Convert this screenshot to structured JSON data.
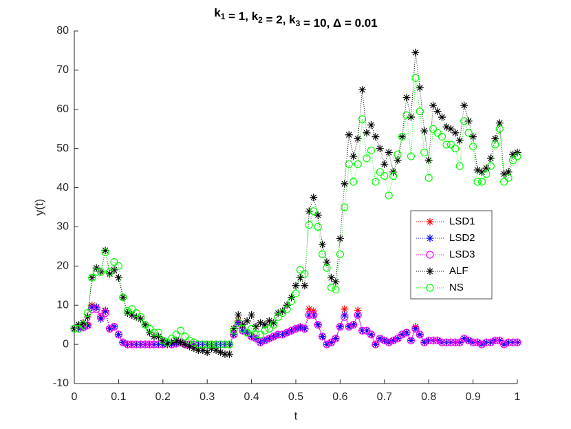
{
  "chart_data": {
    "type": "line",
    "title": "k1 = 1, k2 = 2, k3 = 10, Δ = 0.01",
    "xlabel": "t",
    "ylabel": "y(t)",
    "x": [
      0,
      0.01,
      0.02,
      0.03,
      0.04,
      0.05,
      0.06,
      0.07,
      0.08,
      0.09,
      0.1,
      0.11,
      0.12,
      0.13,
      0.14,
      0.15,
      0.16,
      0.17,
      0.18,
      0.19,
      0.2,
      0.21,
      0.22,
      0.23,
      0.24,
      0.25,
      0.26,
      0.27,
      0.28,
      0.29,
      0.3,
      0.31,
      0.32,
      0.33,
      0.34,
      0.35,
      0.36,
      0.37,
      0.38,
      0.39,
      0.4,
      0.41,
      0.42,
      0.43,
      0.44,
      0.45,
      0.46,
      0.47,
      0.48,
      0.49,
      0.5,
      0.51,
      0.52,
      0.53,
      0.54,
      0.55,
      0.56,
      0.57,
      0.58,
      0.59,
      0.6,
      0.61,
      0.62,
      0.63,
      0.64,
      0.65,
      0.66,
      0.67,
      0.68,
      0.69,
      0.7,
      0.71,
      0.72,
      0.73,
      0.74,
      0.75,
      0.76,
      0.77,
      0.78,
      0.79,
      0.8,
      0.81,
      0.82,
      0.83,
      0.84,
      0.85,
      0.86,
      0.87,
      0.88,
      0.89,
      0.9,
      0.91,
      0.92,
      0.93,
      0.94,
      0.95,
      0.96,
      0.97,
      0.98,
      0.99,
      1
    ],
    "series": [
      {
        "name": "LSD1",
        "color": "#ff0000",
        "marker": "asterisk",
        "values": [
          4,
          4,
          4.5,
          5,
          10,
          9.5,
          7,
          8.7,
          4,
          4.5,
          2.5,
          0.5,
          0,
          0,
          0,
          0,
          0,
          0,
          0,
          0,
          0,
          0.5,
          0,
          0.2,
          0.5,
          0,
          0,
          0,
          0,
          0,
          0,
          0,
          0,
          0,
          0,
          0,
          2.5,
          6,
          3.5,
          3,
          2,
          1.5,
          0.5,
          1,
          1.5,
          2,
          2.5,
          2.5,
          3,
          3.5,
          4,
          4.5,
          4,
          9,
          8.5,
          5,
          2,
          0,
          0.5,
          1.5,
          4.5,
          9,
          4.5,
          5,
          8.7,
          3.5,
          3.5,
          2.5,
          0,
          1.5,
          1,
          0.5,
          1,
          1.5,
          2.5,
          3,
          1,
          4.5,
          2.5,
          0.5,
          1,
          1,
          1,
          0.5,
          0.5,
          0.5,
          0.5,
          0.5,
          1.5,
          1,
          0.5,
          0.5,
          0,
          0.5,
          0.5,
          1,
          1,
          0,
          0.5,
          0.5,
          0.5
        ]
      },
      {
        "name": "LSD2",
        "color": "#0000ff",
        "marker": "asterisk",
        "values": [
          4,
          4,
          4.3,
          4.8,
          9.5,
          9.5,
          6.5,
          8.5,
          4,
          4.5,
          2.5,
          0.5,
          0,
          0,
          0,
          0,
          0,
          0,
          0,
          0,
          0,
          0.5,
          0,
          0.2,
          0.5,
          0,
          0,
          0,
          0,
          0,
          0,
          0,
          0,
          0,
          0,
          0,
          2.5,
          5.5,
          3.5,
          3,
          2,
          1.5,
          0.5,
          1,
          1.5,
          2,
          2.5,
          2.5,
          3,
          3.5,
          4,
          4.3,
          4,
          7.5,
          7.5,
          5,
          2,
          0,
          0.5,
          1.5,
          4.5,
          7.5,
          4.5,
          5,
          7.5,
          3.5,
          3.5,
          2.5,
          0,
          1.5,
          1,
          0.5,
          1,
          1.5,
          2.5,
          3,
          1,
          4,
          2.5,
          0.5,
          1,
          1,
          1,
          0.5,
          0.5,
          0.5,
          0.5,
          0.5,
          1.5,
          1,
          0.5,
          0.5,
          0,
          0.5,
          0.5,
          1,
          1,
          0,
          0.5,
          0.5,
          0.5
        ]
      },
      {
        "name": "LSD3",
        "color": "#ff00ff",
        "marker": "circle",
        "values": [
          4,
          4,
          4.3,
          4.8,
          9,
          9,
          7,
          8,
          4,
          4.5,
          2.5,
          0.5,
          0,
          0,
          0,
          0,
          0,
          0,
          0,
          0,
          0,
          0.5,
          0,
          0.2,
          0.5,
          0,
          0,
          0,
          0,
          0,
          0,
          0,
          0,
          0,
          0,
          0,
          2.5,
          5,
          3.5,
          3,
          2,
          1.5,
          0.5,
          1,
          1.5,
          2,
          2.5,
          2.5,
          3,
          3.5,
          4,
          4.3,
          4,
          7.5,
          7.5,
          5,
          2,
          0,
          0.5,
          1.5,
          4.5,
          7,
          4.5,
          5,
          7.5,
          3.5,
          3.5,
          2.5,
          0,
          1.5,
          1,
          0.5,
          1,
          1.5,
          2.5,
          3,
          1,
          4,
          2.5,
          0.5,
          1,
          1,
          1,
          0.5,
          0.5,
          0.5,
          0.5,
          0.5,
          1.5,
          1,
          0.5,
          0.5,
          0,
          0.5,
          0.5,
          1,
          1,
          0,
          0.5,
          0.5,
          0.5
        ]
      },
      {
        "name": "ALF",
        "color": "#000000",
        "marker": "asterisk",
        "values": [
          4,
          5,
          5.5,
          7,
          17,
          19.5,
          18.5,
          24,
          18,
          19,
          17,
          12,
          8,
          7.5,
          7,
          6.5,
          5,
          3,
          2,
          2,
          1,
          0,
          0.5,
          1,
          0.5,
          0,
          -0.5,
          -1,
          -1.5,
          -1.5,
          -2,
          -1,
          -1.5,
          -2,
          -2.5,
          -2.5,
          4,
          7.5,
          5,
          6,
          7.5,
          4.5,
          5.5,
          5,
          6,
          5.5,
          8,
          8.5,
          10,
          12,
          15,
          17,
          15,
          34,
          37.5,
          33,
          25.5,
          21,
          17,
          16,
          27,
          41,
          53.5,
          48,
          52.5,
          65,
          54,
          56,
          53,
          50,
          46,
          49,
          44,
          47,
          53,
          63,
          58,
          74.5,
          65.5,
          54.5,
          47,
          61,
          59.5,
          58,
          55.5,
          55,
          54,
          52,
          61,
          57,
          53,
          44.5,
          44,
          45,
          47.5,
          52.5,
          56.5,
          43.5,
          44,
          48.5,
          49
        ]
      },
      {
        "name": "NS",
        "color": "#00ff00",
        "marker": "circle",
        "values": [
          4,
          4,
          5,
          8,
          17,
          18.5,
          18.5,
          23.5,
          18.5,
          21,
          20,
          12,
          8.5,
          9,
          8,
          7,
          5,
          4,
          3,
          3,
          1,
          0.5,
          1.5,
          2.5,
          3.5,
          2,
          1,
          0.5,
          0,
          0,
          0,
          0,
          0,
          0,
          0,
          0,
          3.5,
          5.5,
          4,
          3,
          4,
          2.5,
          2.5,
          3.5,
          4,
          5,
          7,
          8,
          9,
          11,
          13,
          19,
          18,
          30.5,
          34,
          30,
          23,
          19.5,
          14.5,
          14,
          23,
          35,
          46,
          41.5,
          46,
          57.5,
          47.5,
          49.5,
          41.5,
          44,
          43,
          38,
          43,
          48.5,
          53,
          58.5,
          48,
          68,
          59.5,
          49,
          42.5,
          55,
          54,
          53,
          51,
          51,
          50,
          45.5,
          57,
          54,
          50.5,
          41.5,
          41.5,
          43.5,
          45.5,
          51,
          55,
          41.5,
          42.5,
          47,
          48
        ]
      }
    ],
    "xlim": [
      0,
      1
    ],
    "xticks": [
      0,
      0.1,
      0.2,
      0.3,
      0.4,
      0.5,
      0.6,
      0.7,
      0.8,
      0.9,
      1
    ],
    "ylim": [
      -10,
      80
    ],
    "yticks": [
      -10,
      0,
      10,
      20,
      30,
      40,
      50,
      60,
      70,
      80
    ],
    "grid": false,
    "legend": "east"
  }
}
